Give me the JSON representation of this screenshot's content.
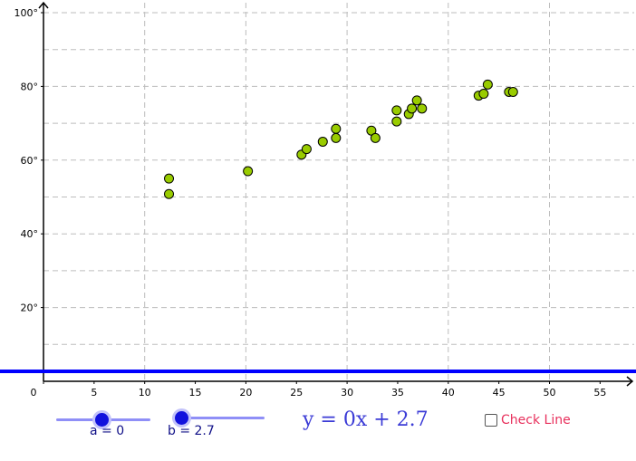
{
  "chart_data": {
    "type": "scatter",
    "x_ticks": [
      "0",
      "5",
      "10",
      "15",
      "20",
      "25",
      "30",
      "35",
      "40",
      "45",
      "50",
      "55"
    ],
    "y_ticks": [
      "20°",
      "40°",
      "60°",
      "80°",
      "100°"
    ],
    "xlim": [
      0,
      58
    ],
    "ylim": [
      0,
      100
    ],
    "grid": true,
    "point_color": "#99cc00",
    "line_color": "#0000ff",
    "points": [
      {
        "x": 12.4,
        "y": 55.0
      },
      {
        "x": 12.4,
        "y": 50.8
      },
      {
        "x": 20.2,
        "y": 57.0
      },
      {
        "x": 25.5,
        "y": 61.5
      },
      {
        "x": 26.0,
        "y": 63.0
      },
      {
        "x": 27.6,
        "y": 65.0
      },
      {
        "x": 28.9,
        "y": 68.5
      },
      {
        "x": 28.9,
        "y": 66.0
      },
      {
        "x": 32.4,
        "y": 68.0
      },
      {
        "x": 32.8,
        "y": 66.0
      },
      {
        "x": 34.9,
        "y": 73.5
      },
      {
        "x": 34.9,
        "y": 70.5
      },
      {
        "x": 36.1,
        "y": 72.5
      },
      {
        "x": 36.4,
        "y": 74.0
      },
      {
        "x": 36.9,
        "y": 76.2
      },
      {
        "x": 37.4,
        "y": 74.0
      },
      {
        "x": 43.0,
        "y": 77.5
      },
      {
        "x": 43.5,
        "y": 78.0
      },
      {
        "x": 43.9,
        "y": 80.5
      },
      {
        "x": 46.0,
        "y": 78.5
      },
      {
        "x": 46.4,
        "y": 78.5
      }
    ],
    "line": {
      "slope": 0,
      "intercept": 2.7
    }
  },
  "sliders": {
    "a": {
      "label": "a = 0",
      "value": 0
    },
    "b": {
      "label": "b = 2.7",
      "value": 2.7
    }
  },
  "equation": "y = 0x + 2.7",
  "checkbox": {
    "label": "Check Line",
    "checked": false
  }
}
